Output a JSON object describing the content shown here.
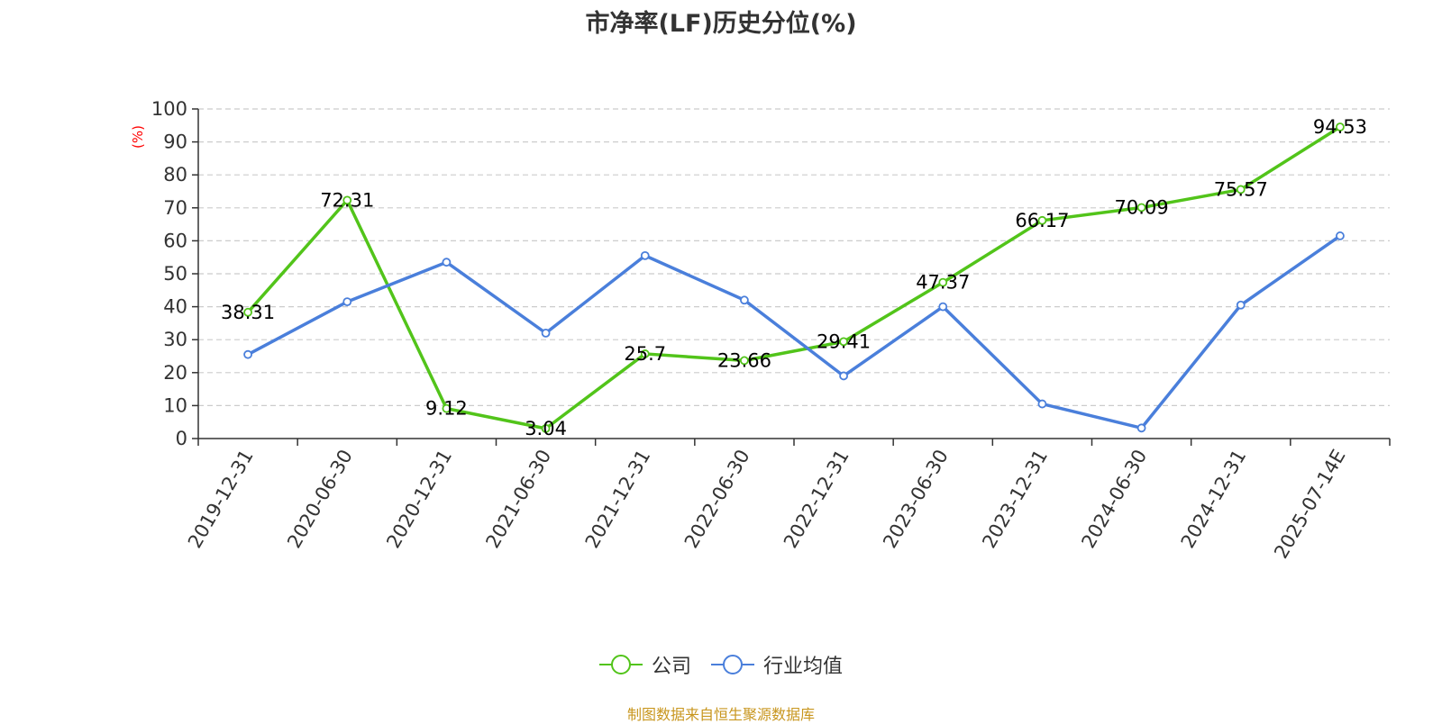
{
  "chart_data": {
    "type": "line",
    "title": "市净率(LF)历史分位(%)",
    "ylabel": "(%)",
    "xlabel": "",
    "ylim": [
      0,
      100
    ],
    "yticks": [
      0,
      10,
      20,
      30,
      40,
      50,
      60,
      70,
      80,
      90,
      100
    ],
    "grid": true,
    "legend_position": "bottom-center",
    "categories": [
      "2019-12-31",
      "2020-06-30",
      "2020-12-31",
      "2021-06-30",
      "2021-12-31",
      "2022-06-30",
      "2022-12-31",
      "2023-06-30",
      "2023-12-31",
      "2024-06-30",
      "2024-12-31",
      "2025-07-14E"
    ],
    "series": [
      {
        "name": "公司",
        "color": "#52c41a",
        "values": [
          38.31,
          72.31,
          9.12,
          3.04,
          25.7,
          23.66,
          29.41,
          47.37,
          66.17,
          70.09,
          75.57,
          94.53
        ],
        "data_labels": [
          "38.31",
          "72.31",
          "9.12",
          "3.04",
          "25.7",
          "23.66",
          "29.41",
          "47.37",
          "66.17",
          "70.09",
          "75.57",
          "94.53"
        ]
      },
      {
        "name": "行业均值",
        "color": "#4a7fdb",
        "values": [
          25.5,
          41.5,
          53.5,
          32.0,
          55.5,
          42.0,
          19.0,
          40.0,
          10.5,
          3.2,
          40.5,
          61.5
        ]
      }
    ]
  },
  "footer": {
    "source": "制图数据来自恒生聚源数据库",
    "color": "#c8961e"
  },
  "colors": {
    "axis": "#333333",
    "grid": "#cccccc",
    "ylabel": "#ff0000"
  }
}
